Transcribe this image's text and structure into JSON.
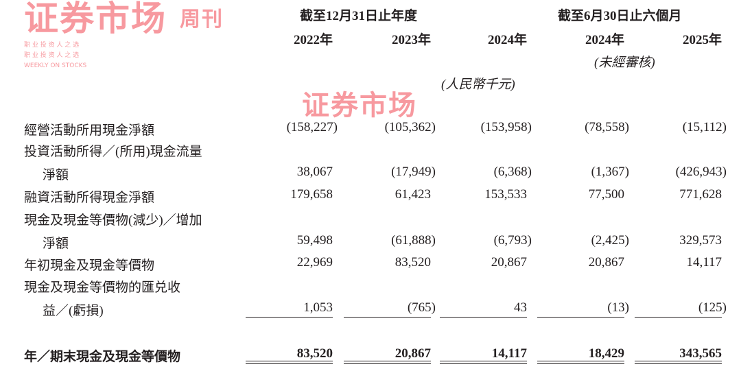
{
  "header": {
    "group1": "截至12月31日止年度",
    "group2": "截至6月30日止六個月",
    "years": [
      "2022年",
      "2023年",
      "2024年",
      "2024年",
      "2025年"
    ],
    "unaudited": "(未經審核)",
    "unit": "(人民幣千元)"
  },
  "rows": [
    {
      "label": [
        "經營活動所用現金淨額"
      ],
      "values": [
        "(158,227)",
        "(105,362)",
        "(153,958)",
        "(78,558)",
        "(15,112)"
      ]
    },
    {
      "label": [
        "投資活動所得／(所用)現金流量",
        "淨額"
      ],
      "values": [
        "38,067",
        "(17,949)",
        "(6,368)",
        "(1,367)",
        "(426,943)"
      ]
    },
    {
      "label": [
        "融資活動所得現金淨額"
      ],
      "values": [
        "179,658",
        "61,423",
        "153,533",
        "77,500",
        "771,628"
      ]
    },
    {
      "label": [
        "現金及現金等價物(減少)／增加",
        "淨額"
      ],
      "values": [
        "59,498",
        "(61,888)",
        "(6,793)",
        "(2,425)",
        "329,573"
      ]
    },
    {
      "label": [
        "年初現金及現金等價物"
      ],
      "values": [
        "22,969",
        "83,520",
        "20,867",
        "20,867",
        "14,117"
      ]
    },
    {
      "label": [
        "現金及現金等價物的匯兑收",
        "益／(虧損)"
      ],
      "values": [
        "1,053",
        "(765)",
        "43",
        "(13)",
        "(125)"
      ]
    }
  ],
  "total": {
    "label": "年／期末現金及現金等價物",
    "values": [
      "83,520",
      "20,867",
      "14,117",
      "18,429",
      "343,565"
    ]
  },
  "watermark": {
    "main": "证券市场",
    "side": "周刊",
    "tagline": "职 业 投 资 人 之 选",
    "english": "WEEKLY ON STOCKS",
    "color": "#f04650"
  }
}
